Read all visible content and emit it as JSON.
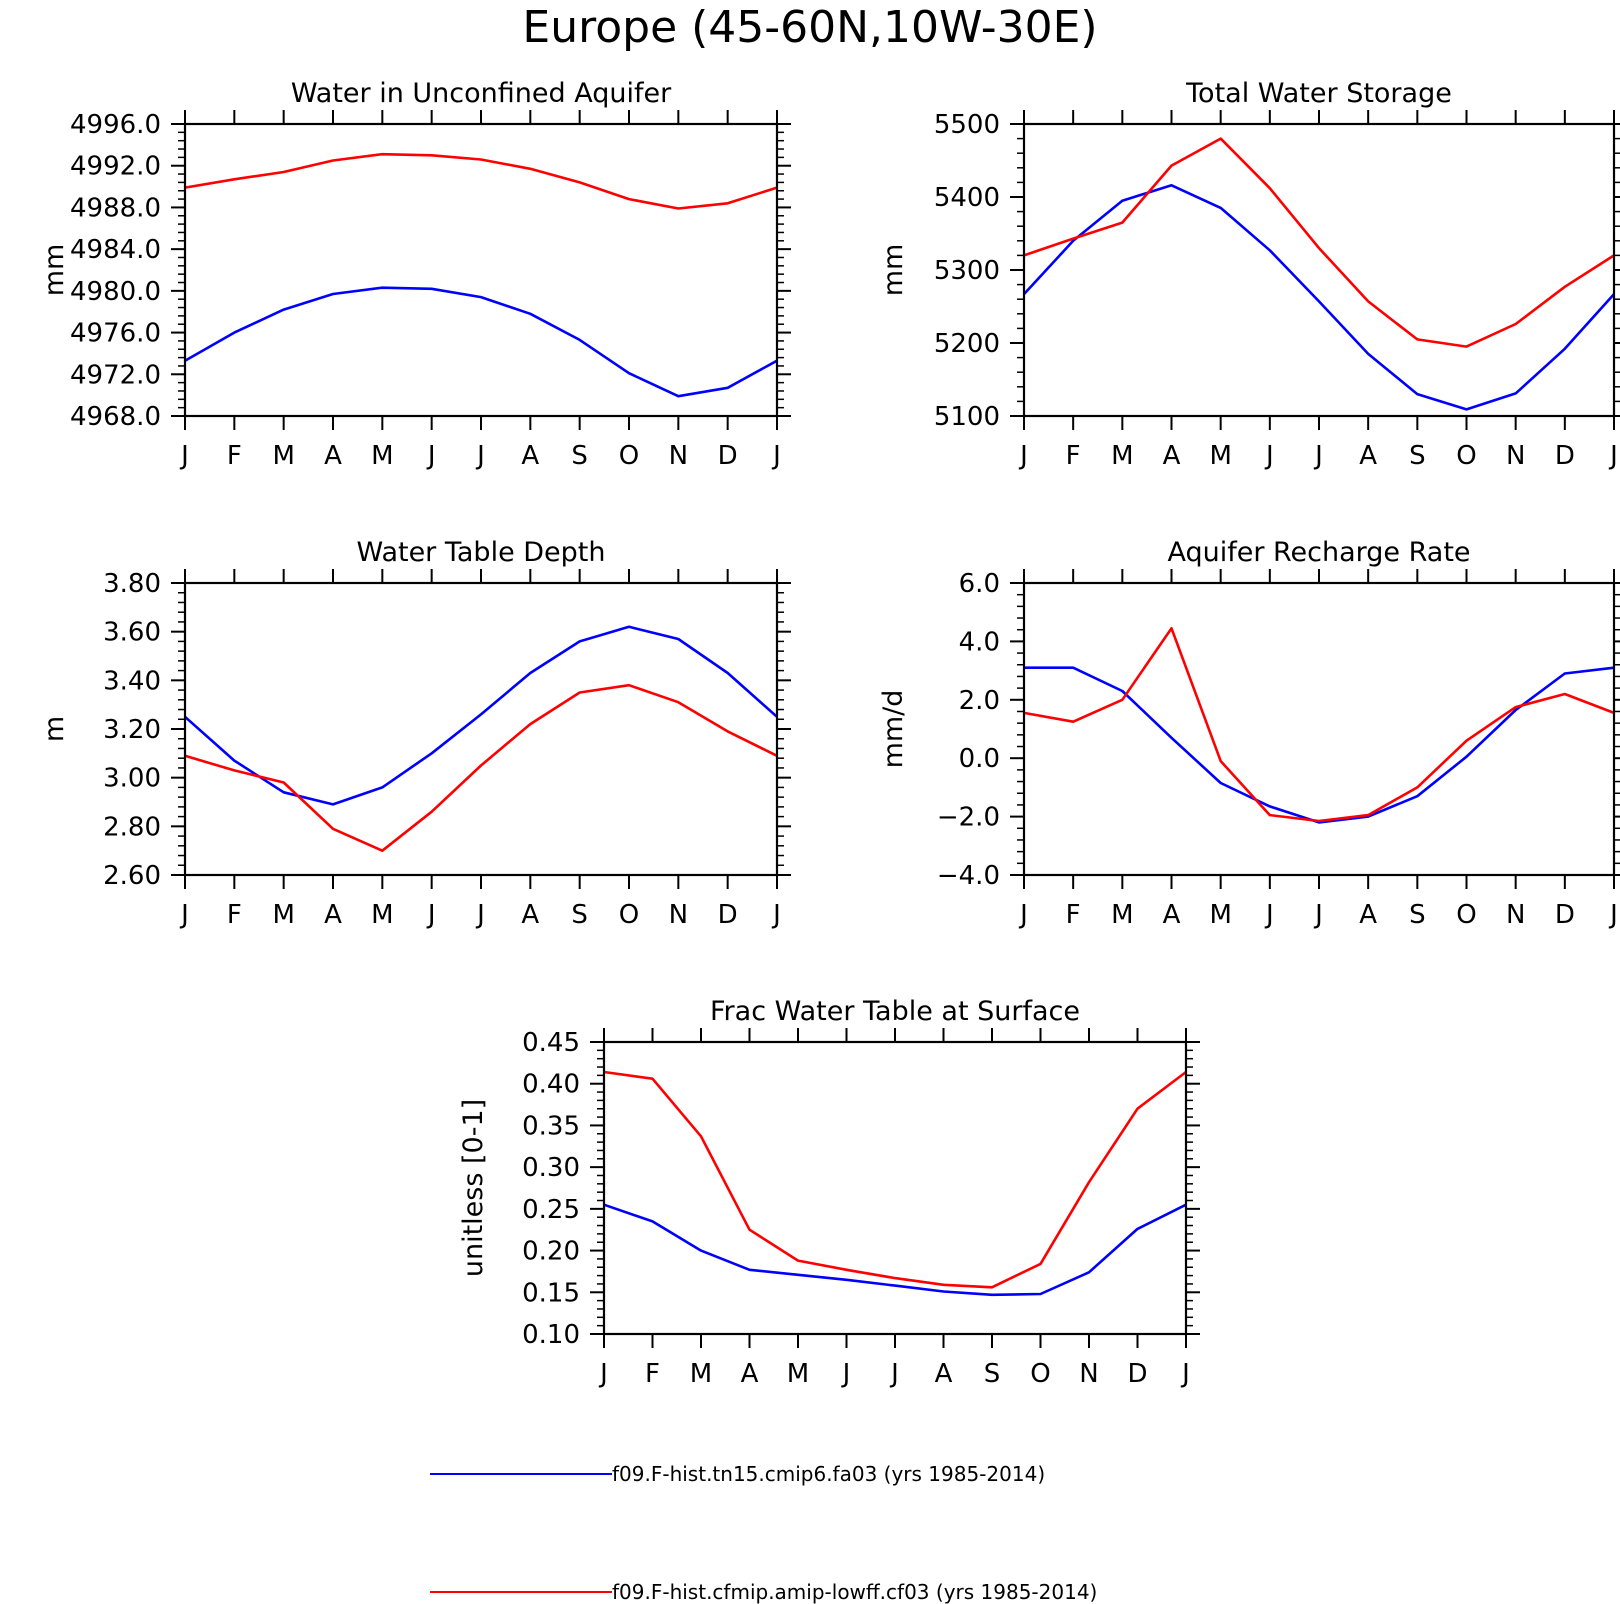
{
  "figure_title": "Europe (45-60N,10W-30E)",
  "legend": [
    {
      "label": "f09.F-hist.tn15.cmip6.fa03 (yrs 1985-2014)",
      "color": "#0000ff"
    },
    {
      "label": "f09.F-hist.cfmip.amip-lowff.cf03 (yrs 1985-2014)",
      "color": "#ff0000"
    }
  ],
  "chart_data": [
    {
      "type": "line",
      "title": "Water in Unconfined Aquifer",
      "ylabel": "mm",
      "x": [
        "J",
        "F",
        "M",
        "A",
        "M",
        "J",
        "J",
        "A",
        "S",
        "O",
        "N",
        "D",
        "J"
      ],
      "ylim": [
        4968.0,
        4996.0
      ],
      "yticks": [
        "4968.0",
        "4972.0",
        "4976.0",
        "4980.0",
        "4984.0",
        "4988.0",
        "4992.0",
        "4996.0"
      ],
      "series": [
        {
          "color": "#0000ff",
          "values": [
            4973.3,
            4976.0,
            4978.2,
            4979.7,
            4980.3,
            4980.2,
            4979.4,
            4977.8,
            4975.3,
            4972.1,
            4969.9,
            4970.7,
            4973.3
          ]
        },
        {
          "color": "#ff0000",
          "values": [
            4989.9,
            4990.7,
            4991.4,
            4992.5,
            4993.1,
            4993.0,
            4992.6,
            4991.7,
            4990.4,
            4988.8,
            4987.9,
            4988.4,
            4989.9
          ]
        }
      ]
    },
    {
      "type": "line",
      "title": "Total Water Storage",
      "ylabel": "mm",
      "x": [
        "J",
        "F",
        "M",
        "A",
        "M",
        "J",
        "J",
        "A",
        "S",
        "O",
        "N",
        "D",
        "J"
      ],
      "ylim": [
        5100,
        5500
      ],
      "yticks": [
        "5100",
        "5200",
        "5300",
        "5400",
        "5500"
      ],
      "series": [
        {
          "color": "#0000ff",
          "values": [
            5267,
            5340,
            5395,
            5416,
            5385,
            5327,
            5257,
            5185,
            5130,
            5109,
            5131,
            5192,
            5267
          ]
        },
        {
          "color": "#ff0000",
          "values": [
            5320,
            5343,
            5365,
            5443,
            5480,
            5412,
            5330,
            5257,
            5205,
            5195,
            5226,
            5277,
            5320
          ]
        }
      ]
    },
    {
      "type": "line",
      "title": "Water Table Depth",
      "ylabel": "m",
      "x": [
        "J",
        "F",
        "M",
        "A",
        "M",
        "J",
        "J",
        "A",
        "S",
        "O",
        "N",
        "D",
        "J"
      ],
      "ylim": [
        2.6,
        3.8
      ],
      "yticks": [
        "2.60",
        "2.80",
        "3.00",
        "3.20",
        "3.40",
        "3.60",
        "3.80"
      ],
      "series": [
        {
          "color": "#0000ff",
          "values": [
            3.25,
            3.07,
            2.94,
            2.89,
            2.96,
            3.1,
            3.26,
            3.43,
            3.56,
            3.62,
            3.57,
            3.43,
            3.25
          ]
        },
        {
          "color": "#ff0000",
          "values": [
            3.09,
            3.03,
            2.98,
            2.79,
            2.7,
            2.86,
            3.05,
            3.22,
            3.35,
            3.38,
            3.31,
            3.19,
            3.09
          ]
        }
      ]
    },
    {
      "type": "line",
      "title": "Aquifer Recharge Rate",
      "ylabel": "mm/d",
      "x": [
        "J",
        "F",
        "M",
        "A",
        "M",
        "J",
        "J",
        "A",
        "S",
        "O",
        "N",
        "D",
        "J"
      ],
      "ylim": [
        -4.0,
        6.0
      ],
      "yticks": [
        "-4.0",
        "-2.0",
        "0.0",
        "2.0",
        "4.0",
        "6.0"
      ],
      "series": [
        {
          "color": "#0000ff",
          "values": [
            3.1,
            3.1,
            2.3,
            0.7,
            -0.85,
            -1.65,
            -2.2,
            -2.0,
            -1.3,
            0.05,
            1.65,
            2.9,
            3.1
          ]
        },
        {
          "color": "#ff0000",
          "values": [
            1.55,
            1.25,
            2.0,
            4.45,
            -0.1,
            -1.95,
            -2.15,
            -1.95,
            -1.0,
            0.6,
            1.75,
            2.2,
            1.55
          ]
        }
      ]
    },
    {
      "type": "line",
      "title": "Frac Water Table at Surface",
      "ylabel": "unitless [0-1]",
      "x": [
        "J",
        "F",
        "M",
        "A",
        "M",
        "J",
        "J",
        "A",
        "S",
        "O",
        "N",
        "D",
        "J"
      ],
      "ylim": [
        0.1,
        0.45
      ],
      "yticks": [
        "0.10",
        "0.15",
        "0.20",
        "0.25",
        "0.30",
        "0.35",
        "0.40",
        "0.45"
      ],
      "series": [
        {
          "color": "#0000ff",
          "values": [
            0.255,
            0.235,
            0.2,
            0.177,
            0.171,
            0.165,
            0.158,
            0.151,
            0.147,
            0.148,
            0.174,
            0.226,
            0.255
          ]
        },
        {
          "color": "#ff0000",
          "values": [
            0.414,
            0.406,
            0.337,
            0.225,
            0.188,
            0.177,
            0.167,
            0.159,
            0.156,
            0.184,
            0.282,
            0.37,
            0.414
          ]
        }
      ]
    }
  ]
}
